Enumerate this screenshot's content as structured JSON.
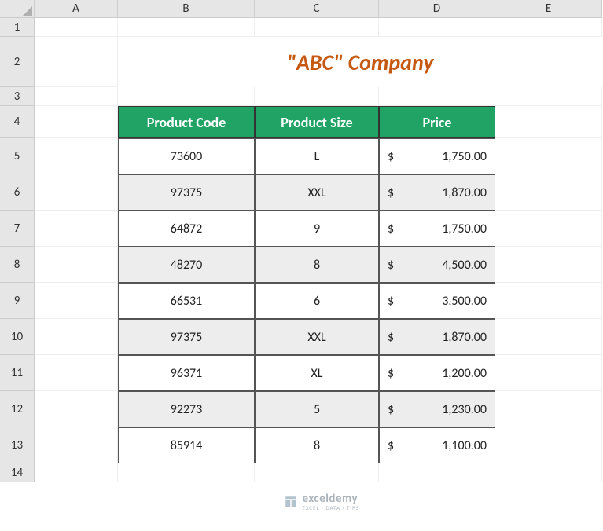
{
  "columns": [
    "A",
    "B",
    "C",
    "D",
    "E"
  ],
  "rowcount": 14,
  "title": "\"ABC\" Company",
  "title_color": "#c65911",
  "table": {
    "header_bg": "#21a366",
    "header_fg": "#ffffff",
    "alt_bg": "#ededed",
    "columns": [
      "Product Code",
      "Product Size",
      "Price"
    ],
    "currency": "$",
    "rows": [
      {
        "code": "73600",
        "size": "L",
        "price": "1,750.00",
        "alt": false
      },
      {
        "code": "97375",
        "size": "XXL",
        "price": "1,870.00",
        "alt": true
      },
      {
        "code": "64872",
        "size": "9",
        "price": "1,750.00",
        "alt": false
      },
      {
        "code": "48270",
        "size": "8",
        "price": "4,500.00",
        "alt": true
      },
      {
        "code": "66531",
        "size": "6",
        "price": "3,500.00",
        "alt": false
      },
      {
        "code": "97375",
        "size": "XXL",
        "price": "1,870.00",
        "alt": true
      },
      {
        "code": "96371",
        "size": "XL",
        "price": "1,200.00",
        "alt": false
      },
      {
        "code": "92273",
        "size": "5",
        "price": "1,230.00",
        "alt": true
      },
      {
        "code": "85914",
        "size": "8",
        "price": "1,100.00",
        "alt": false
      }
    ]
  },
  "watermark": {
    "brand": "exceldemy",
    "tagline": "EXCEL · DATA · TIPS"
  }
}
